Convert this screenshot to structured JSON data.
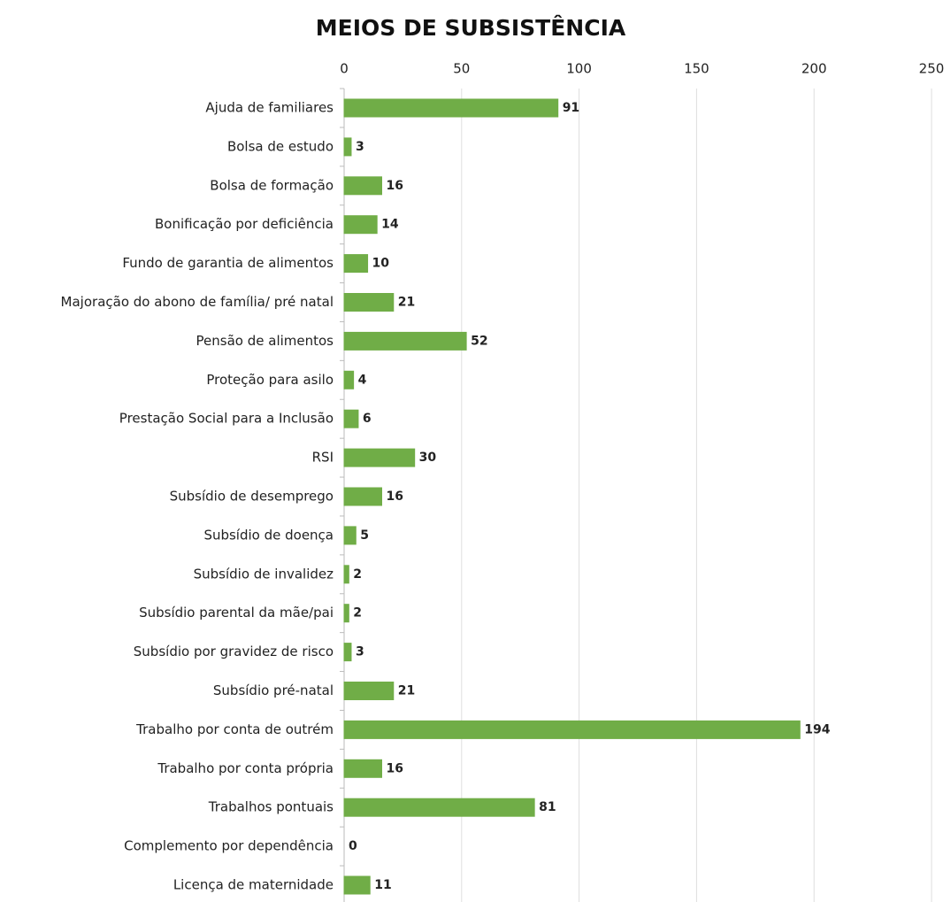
{
  "chart_data": {
    "type": "bar",
    "title": "MEIOS DE SUBSISTÊNCIA",
    "categories": [
      "Ajuda de familiares",
      "Bolsa de estudo",
      "Bolsa de formação",
      "Bonificação por deficiência",
      "Fundo de garantia de alimentos",
      "Majoração do abono de família/ pré natal",
      "Pensão de alimentos",
      "Proteção para asilo",
      "Prestação Social para a Inclusão",
      "RSI",
      "Subsídio de desemprego",
      "Subsídio de doença",
      "Subsídio de invalidez",
      "Subsídio parental da mãe/pai",
      "Subsídio por gravidez de risco",
      "Subsídio pré-natal",
      "Trabalho por conta de outrém",
      "Trabalho por conta própria",
      "Trabalhos pontuais",
      "Complemento por dependência",
      "Licença de maternidade"
    ],
    "values": [
      91,
      3,
      16,
      14,
      10,
      21,
      52,
      4,
      6,
      30,
      16,
      5,
      2,
      2,
      3,
      21,
      194,
      16,
      81,
      0,
      11
    ],
    "color": "#70ad47",
    "xlim": [
      0,
      250
    ],
    "xticks": [
      0,
      50,
      100,
      150,
      200,
      250
    ],
    "grid": true
  }
}
